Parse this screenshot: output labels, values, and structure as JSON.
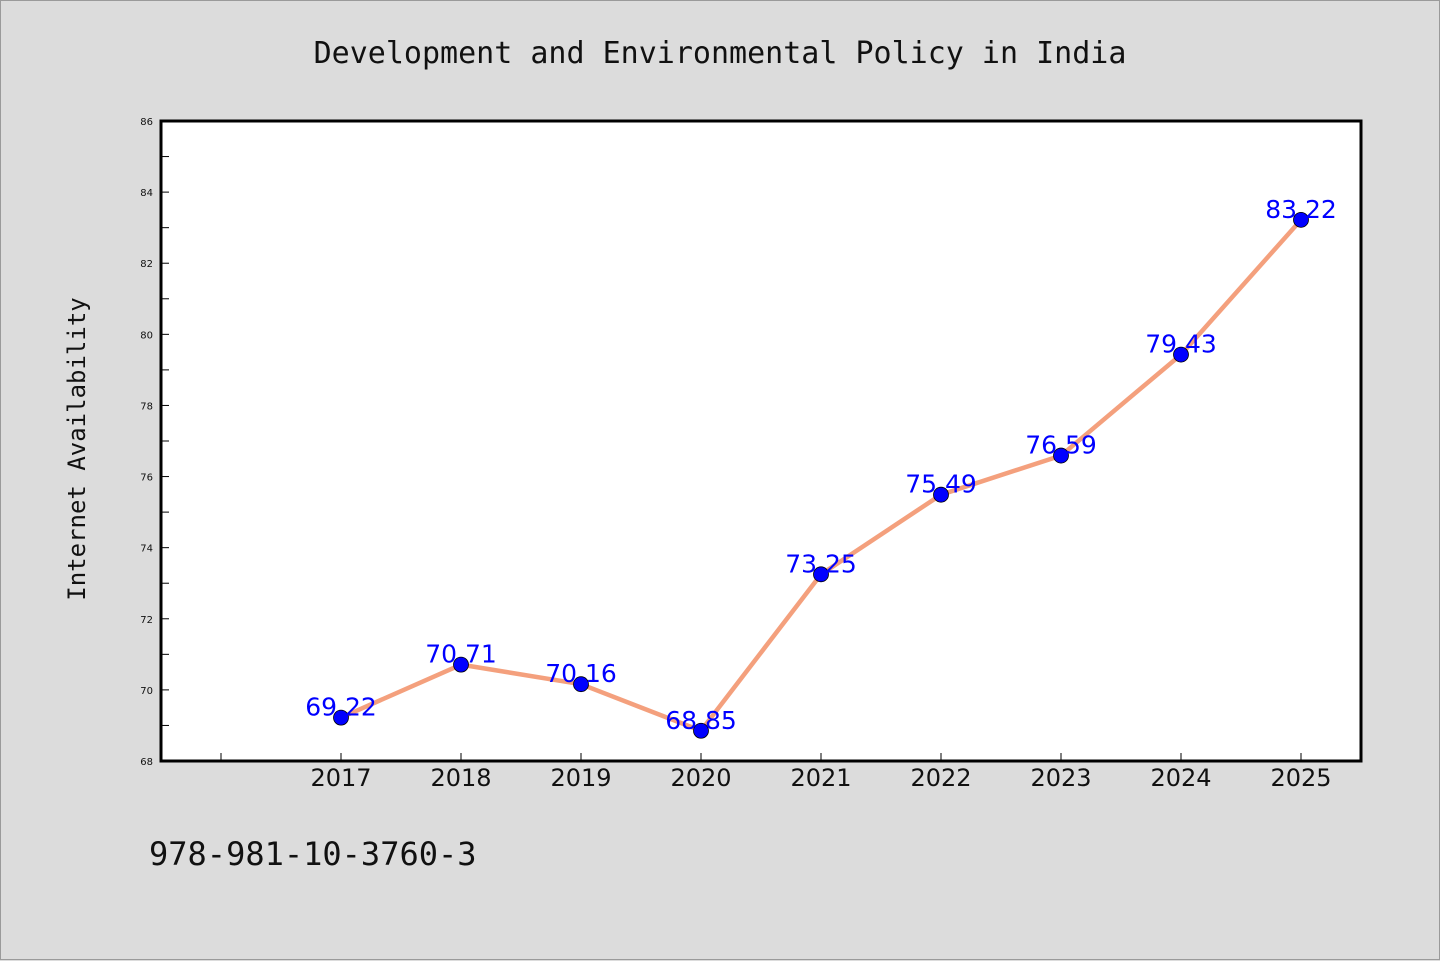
{
  "footer": {
    "code": "978-981-10-3760-3"
  },
  "chart_data": {
    "type": "line",
    "title": "Development and Environmental Policy in India",
    "xlabel": "",
    "ylabel": "Internet Availability",
    "x": [
      "2017",
      "2018",
      "2019",
      "2020",
      "2021",
      "2022",
      "2023",
      "2024",
      "2025"
    ],
    "values": [
      69.22,
      70.71,
      70.16,
      68.85,
      73.25,
      75.49,
      76.59,
      79.43,
      83.22
    ],
    "point_labels": [
      "69.22",
      "70.71",
      "70.16",
      "68.85",
      "73.25",
      "75.49",
      "76.59",
      "79.43",
      "83.22"
    ],
    "ylim": [
      68,
      86
    ],
    "yticks": [
      "68",
      "70",
      "72",
      "74",
      "76",
      "78",
      "80",
      "82",
      "84",
      "86"
    ],
    "grid": false,
    "line_color": "#f4a07d",
    "marker_color": "#0000ff",
    "label_color": "#0000ff",
    "background_color": "#ffffff",
    "page_color": "#dcdcdc"
  }
}
